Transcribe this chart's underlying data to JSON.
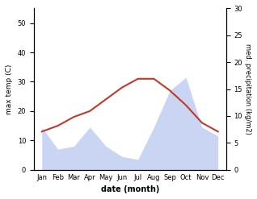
{
  "months": [
    "Jan",
    "Feb",
    "Mar",
    "Apr",
    "May",
    "Jun",
    "Jul",
    "Aug",
    "Sep",
    "Oct",
    "Nov",
    "Dec"
  ],
  "temp_max": [
    13,
    15,
    18,
    20,
    24,
    28,
    31,
    31,
    27,
    22,
    16,
    13
  ],
  "precipitation": [
    29,
    14,
    16,
    29,
    16,
    9,
    7,
    29,
    54,
    63,
    29,
    23
  ],
  "temp_color": "#c0392b",
  "precip_fill_color": "#b8c8f0",
  "precip_fill_alpha": 0.75,
  "temp_ylim": [
    0,
    55
  ],
  "precip_ylim": [
    0,
    110
  ],
  "ylabel_left": "max temp (C)",
  "ylabel_right": "med. precipitation (kg/m2)",
  "xlabel": "date (month)",
  "left_yticks": [
    0,
    10,
    20,
    30,
    40,
    50
  ],
  "right_yticks": [
    0,
    5,
    10,
    15,
    20,
    25,
    30
  ],
  "right_ytick_labels": [
    "0",
    "5",
    "10",
    "15",
    "20",
    "25",
    "30"
  ],
  "bg_color": "#ffffff",
  "precip_scale_max": 30
}
